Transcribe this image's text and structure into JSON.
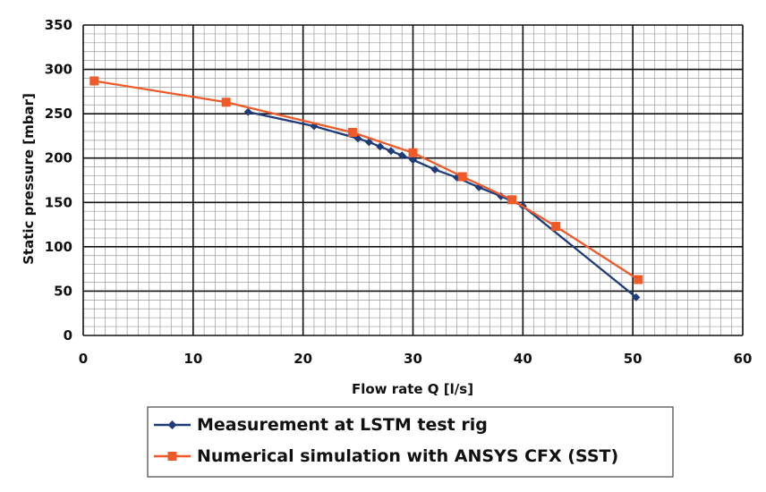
{
  "chart_data": {
    "type": "line",
    "title": "",
    "xlabel": "Flow rate Q [l/s]",
    "ylabel": "Static pressure [mbar]",
    "xlim": [
      0,
      60
    ],
    "ylim": [
      0,
      350
    ],
    "xticks": [
      0,
      10,
      20,
      30,
      40,
      50,
      60
    ],
    "yticks": [
      0,
      50,
      100,
      150,
      200,
      250,
      300,
      350
    ],
    "grid": true,
    "legend_position": "bottom",
    "series": [
      {
        "name": "Measurement at LSTM test rig",
        "color": "#1f3c78",
        "marker": "diamond",
        "points": [
          [
            15,
            252
          ],
          [
            21,
            236
          ],
          [
            25,
            222
          ],
          [
            26,
            218
          ],
          [
            27,
            213
          ],
          [
            28,
            208
          ],
          [
            29,
            203
          ],
          [
            30,
            198
          ],
          [
            32,
            187
          ],
          [
            34,
            178
          ],
          [
            36,
            167
          ],
          [
            38,
            157
          ],
          [
            40,
            146
          ],
          [
            50.3,
            43
          ]
        ]
      },
      {
        "name": "Numerical simulation with ANSYS CFX (SST)",
        "color": "#f05a28",
        "marker": "square",
        "points": [
          [
            1,
            287
          ],
          [
            13,
            263
          ],
          [
            24.5,
            229
          ],
          [
            30,
            206
          ],
          [
            34.5,
            179
          ],
          [
            39,
            153
          ],
          [
            43,
            123
          ],
          [
            50.5,
            63
          ]
        ]
      }
    ]
  }
}
